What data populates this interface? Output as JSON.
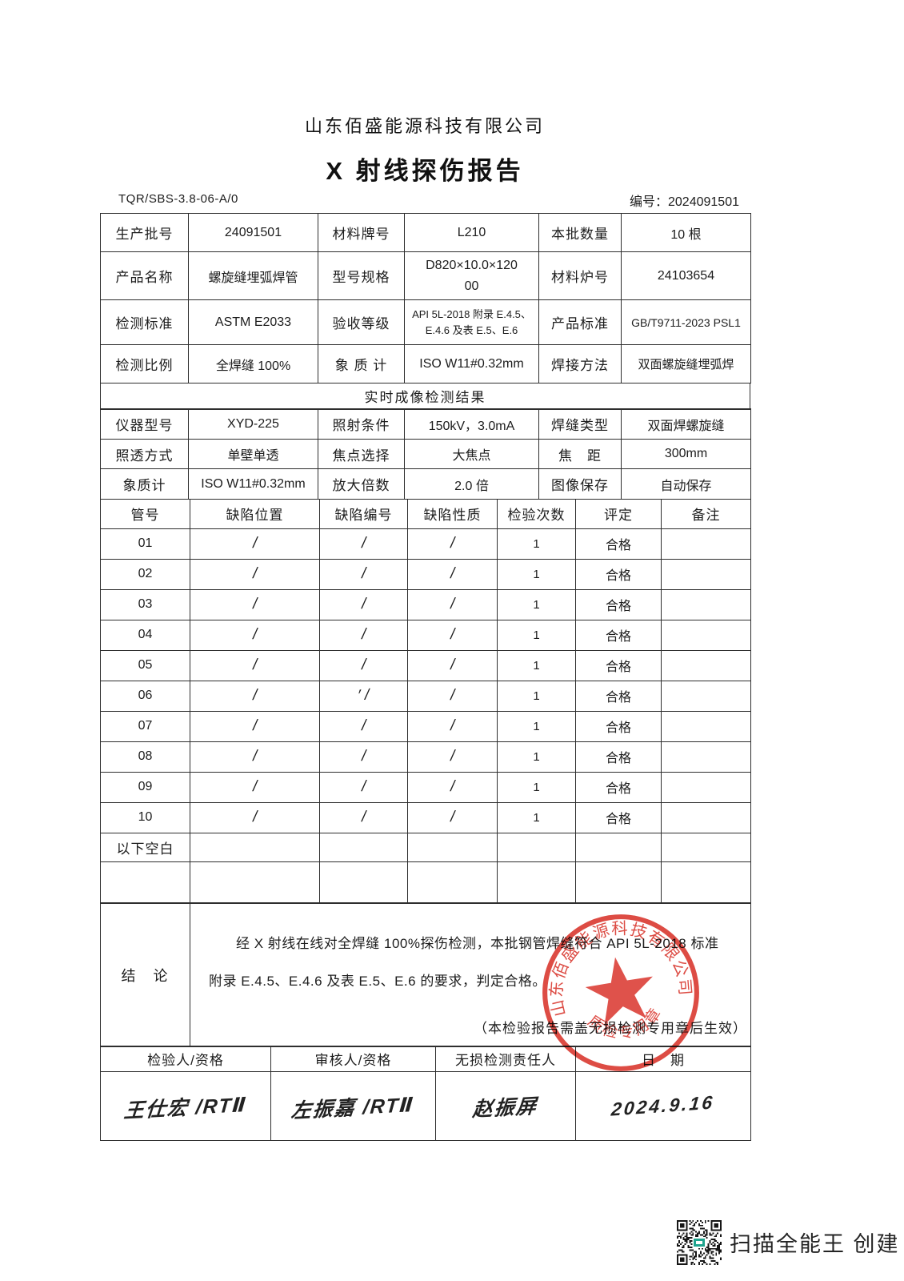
{
  "page": {
    "company": "山东佰盛能源科技有限公司",
    "title": "X 射线探伤报告",
    "doc_code": "TQR/SBS-3.8-06-A/0",
    "report_no": "编号：2024091501"
  },
  "info_table": {
    "rows": [
      [
        {
          "label": "生产批号",
          "value": "24091501"
        },
        {
          "label": "材料牌号",
          "value": "L210"
        },
        {
          "label": "本批数量",
          "value": "10 根"
        }
      ],
      [
        {
          "label": "产品名称",
          "value": "螺旋缝埋弧焊管"
        },
        {
          "label": "型号规格",
          "value": "D820×10.0×12000"
        },
        {
          "label": "材料炉号",
          "value": "24103654"
        }
      ],
      [
        {
          "label": "检测标准",
          "value": "ASTM E2033"
        },
        {
          "label": "验收等级",
          "value": "API 5L-2018 附录 E.4.5、E.4.6 及表 E.5、E.6"
        },
        {
          "label": "产品标准",
          "value": "GB/T9711-2023 PSL1"
        }
      ],
      [
        {
          "label": "检测比例",
          "value": "全焊缝 100%"
        },
        {
          "label": "象 质 计",
          "value": "ISO W11#0.32mm"
        },
        {
          "label": "焊接方法",
          "value": "双面螺旋缝埋弧焊"
        }
      ]
    ]
  },
  "section_banner": "实时成像检测结果",
  "imaging_table": {
    "rows": [
      [
        {
          "label": "仪器型号",
          "value": "XYD-225"
        },
        {
          "label": "照射条件",
          "value": "150kV，3.0mA"
        },
        {
          "label": "焊缝类型",
          "value": "双面焊螺旋缝"
        }
      ],
      [
        {
          "label": "照透方式",
          "value": "单壁单透"
        },
        {
          "label": "焦点选择",
          "value": "大焦点"
        },
        {
          "label": "焦　距",
          "value": "300mm"
        }
      ],
      [
        {
          "label": "象质计",
          "value": "ISO W11#0.32mm"
        },
        {
          "label": "放大倍数",
          "value": "2.0 倍"
        },
        {
          "label": "图像保存",
          "value": "自动保存"
        }
      ]
    ]
  },
  "defect_table": {
    "headers": [
      "管号",
      "缺陷位置",
      "缺陷编号",
      "缺陷性质",
      "检验次数",
      "评定",
      "备注"
    ],
    "rows": [
      [
        "01",
        "/",
        "/",
        "/",
        "1",
        "合格",
        ""
      ],
      [
        "02",
        "/",
        "/",
        "/",
        "1",
        "合格",
        ""
      ],
      [
        "03",
        "/",
        "/",
        "/",
        "1",
        "合格",
        ""
      ],
      [
        "04",
        "/",
        "/",
        "/",
        "1",
        "合格",
        ""
      ],
      [
        "05",
        "/",
        "/",
        "/",
        "1",
        "合格",
        ""
      ],
      [
        "06",
        "/",
        "′ /",
        "/",
        "1",
        "合格",
        ""
      ],
      [
        "07",
        "/",
        "/",
        "/",
        "1",
        "合格",
        ""
      ],
      [
        "08",
        "/",
        "/",
        "/",
        "1",
        "合格",
        ""
      ],
      [
        "09",
        "/",
        "/",
        "/",
        "1",
        "合格",
        ""
      ],
      [
        "10",
        "/",
        "/",
        "/",
        "1",
        "合格",
        ""
      ]
    ],
    "footer_label": "以下空白"
  },
  "conclusion": {
    "label": "结　论",
    "text": "经 X 射线在线对全焊缝 100%探伤检测，本批钢管焊缝符合 API 5L-2018 标准附录 E.4.5、E.4.6 及表 E.5、E.6 的要求，判定合格。",
    "note": "（本检验报告需盖无损检测专用章后生效）"
  },
  "stamp": {
    "company": "山东佰盛能源科技有限公司",
    "subtext": "质检专用章",
    "color": "#d9342b"
  },
  "signature_table": {
    "headers": [
      "检验人/资格",
      "审核人/资格",
      "无损检测责任人",
      "日　期"
    ],
    "values": [
      "王仕宏 /RTⅡ",
      "左振嘉 /RTⅡ",
      "赵振屏",
      "2024.9.16"
    ]
  },
  "footer": {
    "qr_label": "扫描全能王 创建"
  }
}
